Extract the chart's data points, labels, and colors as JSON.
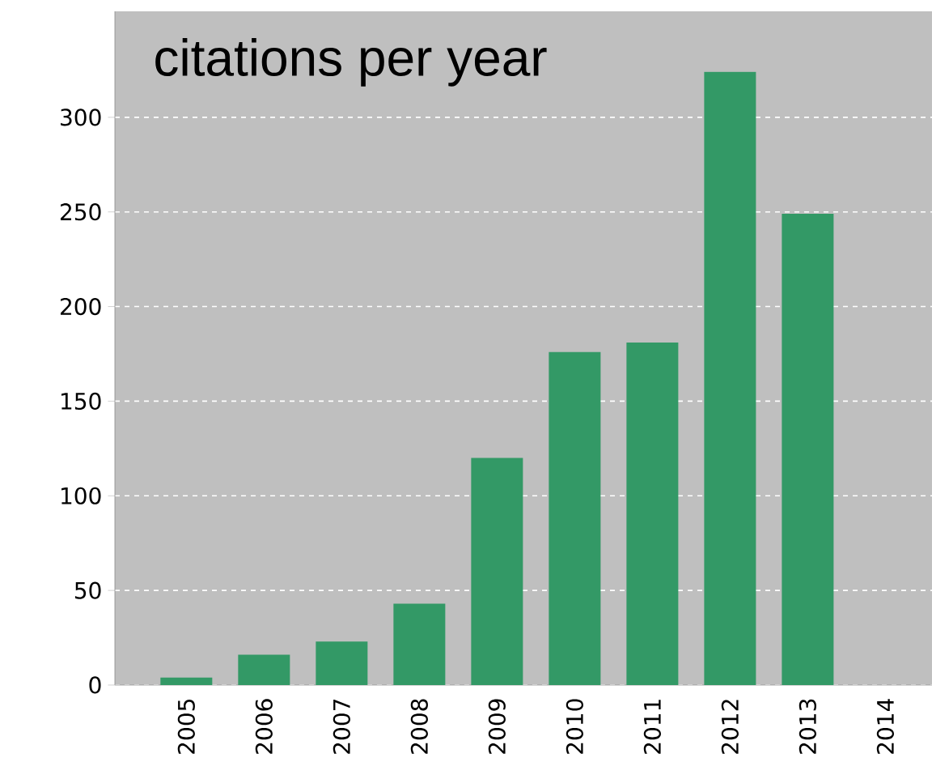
{
  "chart_data": {
    "type": "bar",
    "title": "citations per year",
    "categories": [
      "2005",
      "2006",
      "2007",
      "2008",
      "2009",
      "2010",
      "2011",
      "2012",
      "2013",
      "2014"
    ],
    "values": [
      4,
      16,
      23,
      43,
      120,
      176,
      181,
      324,
      249,
      0
    ],
    "color": "#339966",
    "ylim": [
      0,
      356
    ],
    "yticks": [
      0,
      50,
      100,
      150,
      200,
      250,
      300
    ],
    "grid": "y"
  }
}
